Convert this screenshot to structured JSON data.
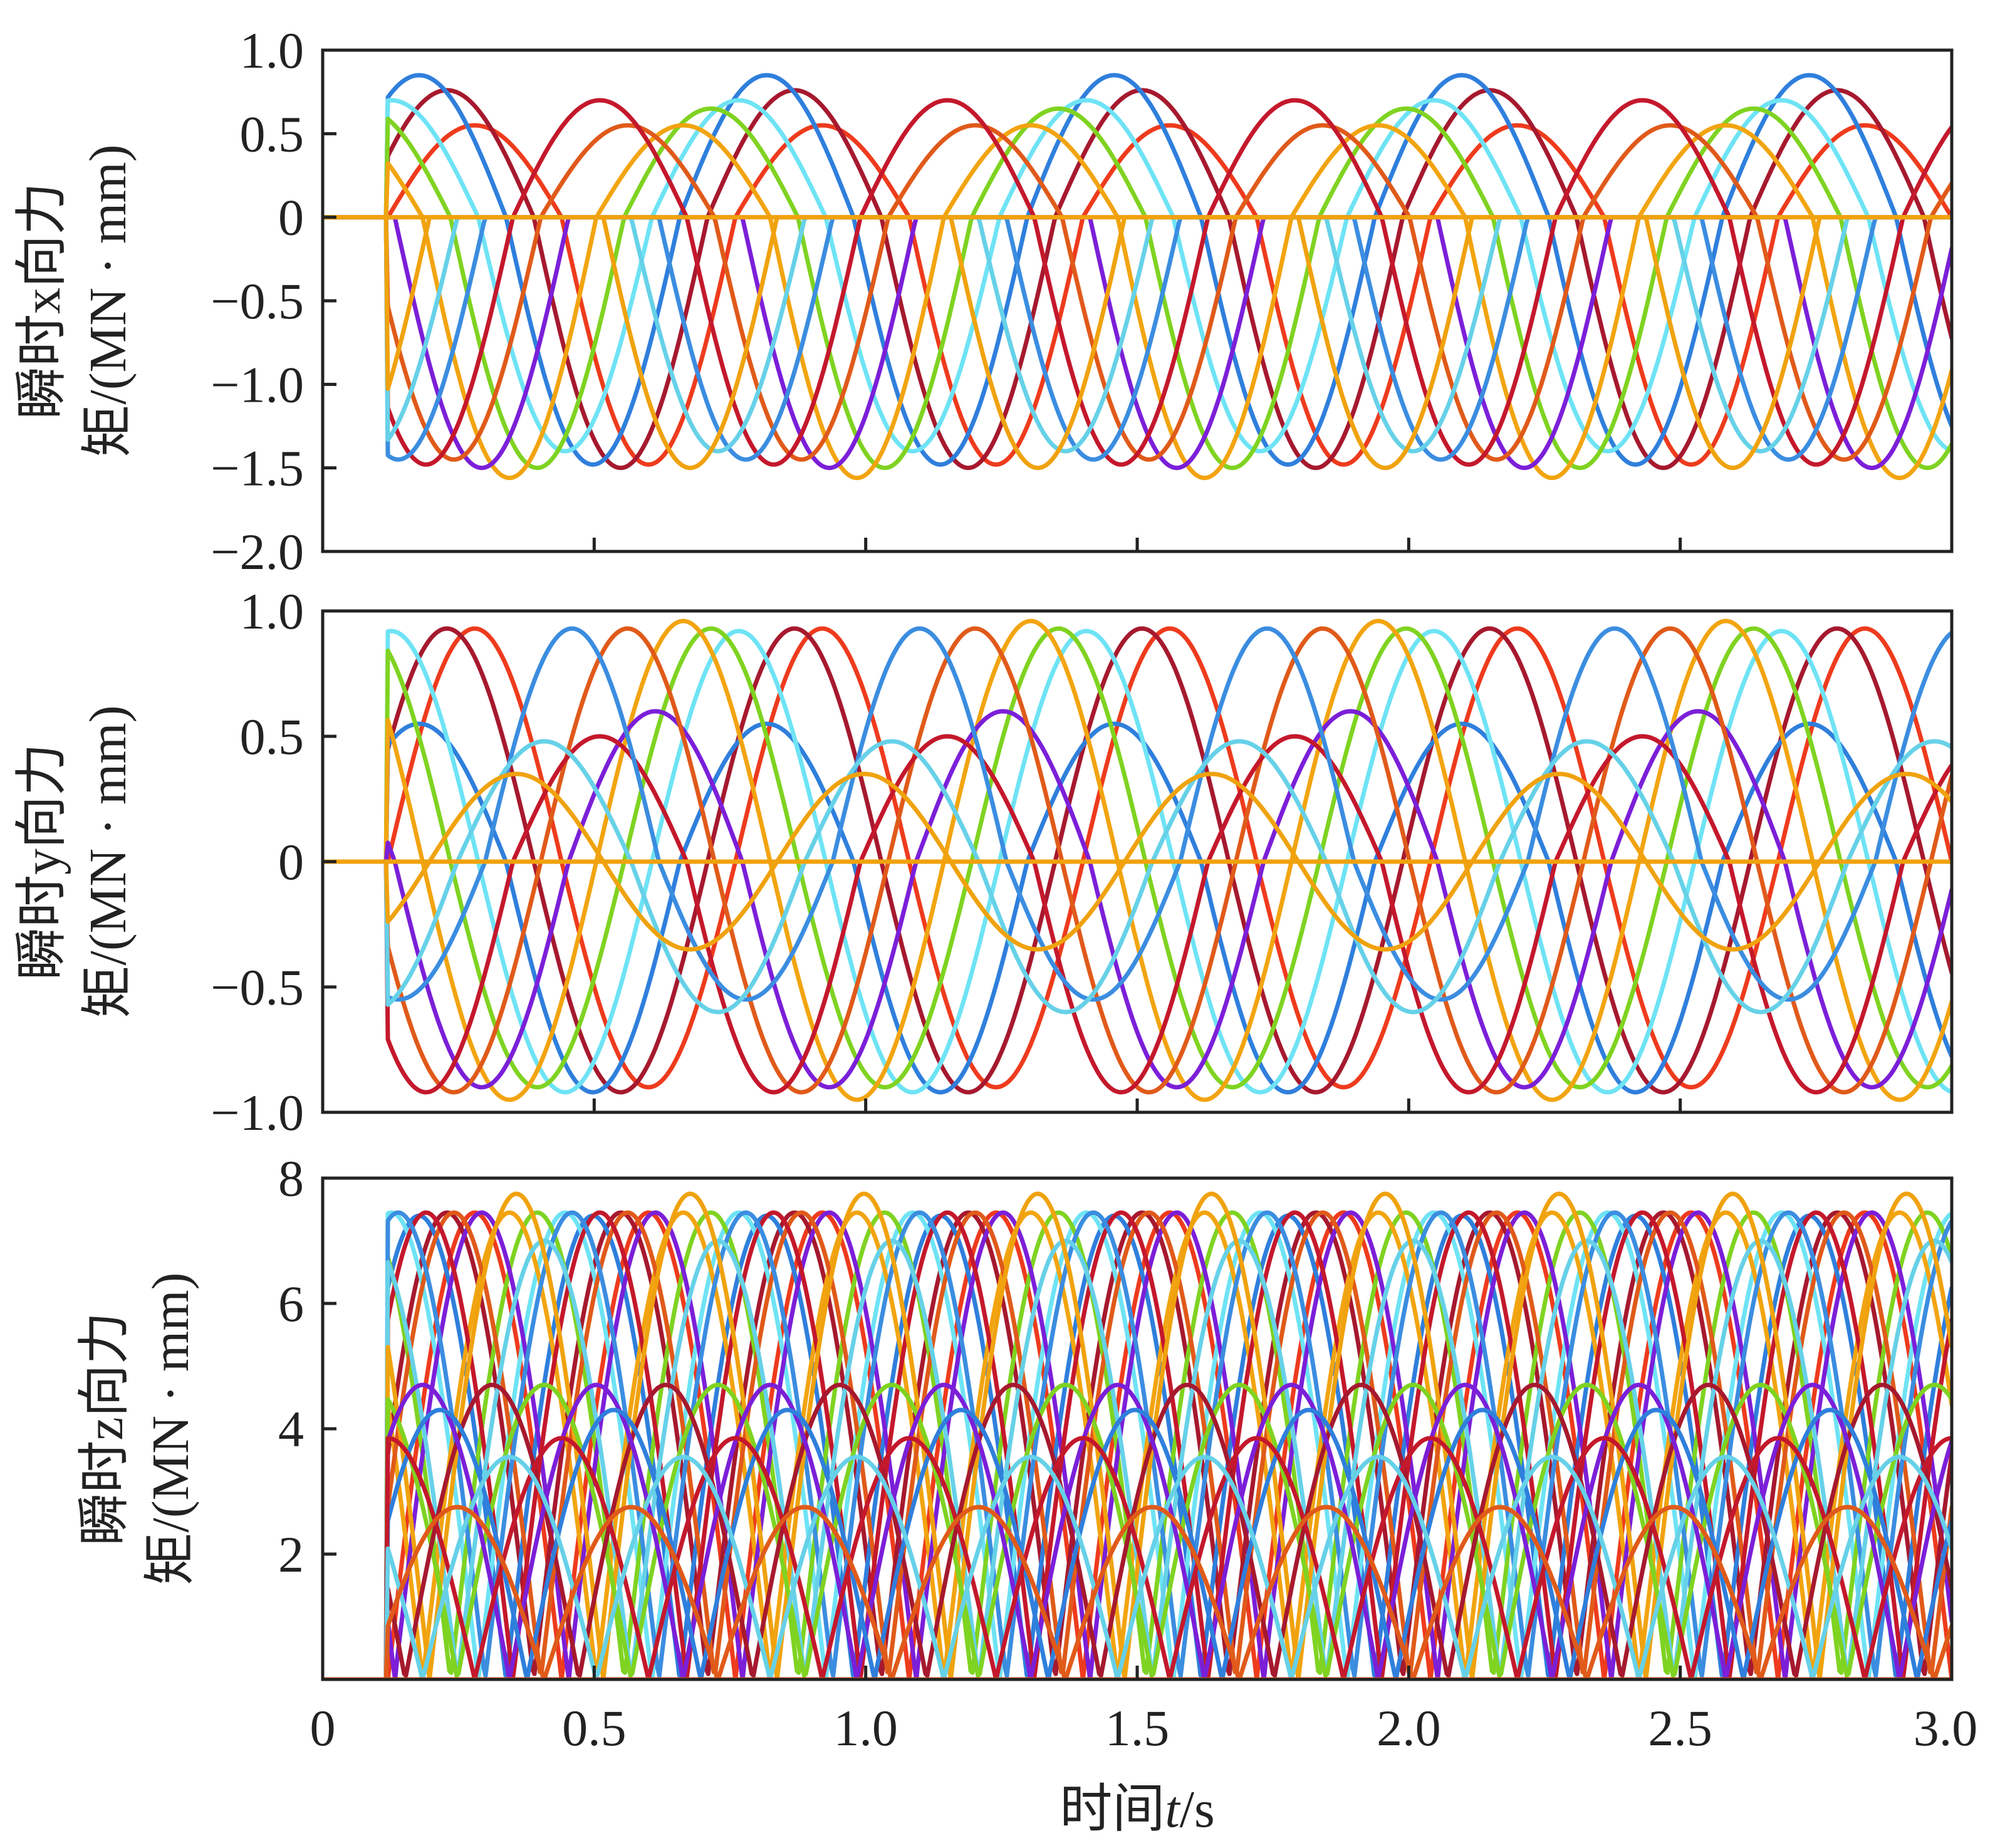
{
  "chart_data": [
    {
      "type": "line",
      "panel": "x",
      "ylabel_lines": [
        "瞬时x向力",
        "矩/(MN · mm)"
      ],
      "ylabel_italic_char": "x",
      "xlim": [
        0,
        3.0
      ],
      "ylim": [
        -2.0,
        1.0
      ],
      "yticks": [
        1.0,
        0.5,
        0,
        -0.5,
        -1.0,
        -1.5,
        -2.0
      ],
      "ytick_labels": [
        "1.0",
        "0.5",
        "0",
        "−0.5",
        "−1.0",
        "−1.5",
        "−2.0"
      ],
      "xticks": [
        0,
        0.5,
        1.0,
        1.5,
        2.0,
        2.5,
        3.0
      ],
      "period": 1.28,
      "start": 0.12,
      "series": [
        {
          "color": "#ee3b1d",
          "pos_amp": 0.55,
          "neg_amp": -1.48,
          "phase": 0.0,
          "freq": 2
        },
        {
          "color": "#a6192e",
          "pos_amp": 0.76,
          "neg_amp": -1.5,
          "phase": 0.08,
          "freq": 2
        },
        {
          "color": "#2f7fdc",
          "pos_amp": 0.85,
          "neg_amp": -1.48,
          "phase": 0.16,
          "freq": 2
        },
        {
          "color": "#6ee3f5",
          "pos_amp": 0.7,
          "neg_amp": -1.4,
          "phase": 0.24,
          "freq": 2
        },
        {
          "color": "#7fd321",
          "pos_amp": 0.65,
          "neg_amp": -1.5,
          "phase": 0.32,
          "freq": 2
        },
        {
          "color": "#f2a410",
          "pos_amp": 0.55,
          "neg_amp": -1.56,
          "phase": 0.4,
          "freq": 2
        },
        {
          "color": "#7b1fd8",
          "pos_amp": 0.0,
          "neg_amp": -1.5,
          "phase": 0.48,
          "freq": 2
        },
        {
          "color": "#e05a1a",
          "pos_amp": 0.55,
          "neg_amp": -1.45,
          "phase": 0.56,
          "freq": 2
        },
        {
          "color": "#c4182c",
          "pos_amp": 0.7,
          "neg_amp": -1.48,
          "phase": 0.64,
          "freq": 2
        },
        {
          "color": "#3b8de0",
          "pos_amp": 0.0,
          "neg_amp": -1.45,
          "phase": 0.72,
          "freq": 2
        },
        {
          "color": "#66d1e8",
          "pos_amp": 0.0,
          "neg_amp": -1.4,
          "phase": 0.8,
          "freq": 2
        },
        {
          "color": "#f0a20e",
          "pos_amp": 0.0,
          "neg_amp": -1.5,
          "phase": 0.88,
          "freq": 2
        }
      ]
    },
    {
      "type": "line",
      "panel": "y",
      "ylabel_lines": [
        "瞬时y向力",
        "矩/(MN · mm)"
      ],
      "ylabel_italic_char": "y",
      "xlim": [
        0,
        3.0
      ],
      "ylim": [
        -1.0,
        1.0
      ],
      "yticks": [
        1.0,
        0.5,
        0,
        -0.5,
        -1.0
      ],
      "ytick_labels": [
        "1.0",
        "0.5",
        "0",
        "−0.5",
        "−1.0"
      ],
      "xticks": [
        0,
        0.5,
        1.0,
        1.5,
        2.0,
        2.5,
        3.0
      ],
      "period": 1.28,
      "start": 0.12,
      "series": [
        {
          "color": "#ee3b1d",
          "pos_amp": 0.93,
          "neg_amp": -0.9,
          "phase": 0.0,
          "freq": 2
        },
        {
          "color": "#a6192e",
          "pos_amp": 0.93,
          "neg_amp": -0.92,
          "phase": 0.08,
          "freq": 2
        },
        {
          "color": "#2f7fdc",
          "pos_amp": 0.55,
          "neg_amp": -0.92,
          "phase": 0.16,
          "freq": 2
        },
        {
          "color": "#6ee3f5",
          "pos_amp": 0.92,
          "neg_amp": -0.92,
          "phase": 0.24,
          "freq": 2
        },
        {
          "color": "#7fd321",
          "pos_amp": 0.93,
          "neg_amp": -0.9,
          "phase": 0.32,
          "freq": 2
        },
        {
          "color": "#f2a410",
          "pos_amp": 0.96,
          "neg_amp": -0.95,
          "phase": 0.4,
          "freq": 2
        },
        {
          "color": "#7b1fd8",
          "pos_amp": 0.6,
          "neg_amp": -0.9,
          "phase": 0.48,
          "freq": 2
        },
        {
          "color": "#e05a1a",
          "pos_amp": 0.93,
          "neg_amp": -0.92,
          "phase": 0.56,
          "freq": 2
        },
        {
          "color": "#c4182c",
          "pos_amp": 0.5,
          "neg_amp": -0.92,
          "phase": 0.64,
          "freq": 2
        },
        {
          "color": "#3b8de0",
          "pos_amp": 0.93,
          "neg_amp": -0.55,
          "phase": 0.72,
          "freq": 2
        },
        {
          "color": "#66d1e8",
          "pos_amp": 0.48,
          "neg_amp": -0.6,
          "phase": 0.8,
          "freq": 2
        },
        {
          "color": "#f0a20e",
          "pos_amp": 0.35,
          "neg_amp": -0.35,
          "phase": 0.88,
          "freq": 2
        }
      ]
    },
    {
      "type": "line",
      "panel": "z",
      "ylabel_lines": [
        "瞬时z向力",
        "矩/(MN · mm)"
      ],
      "ylabel_italic_char": "z",
      "xlim": [
        0,
        3.0
      ],
      "ylim": [
        0,
        8
      ],
      "yticks": [
        8,
        6,
        4,
        2
      ],
      "ytick_labels": [
        "8",
        "6",
        "4",
        "2"
      ],
      "xticks": [
        0,
        0.5,
        1.0,
        1.5,
        2.0,
        2.5,
        3.0
      ],
      "xtick_labels": [
        "0",
        "0.5",
        "1.0",
        "1.5",
        "2.0",
        "2.5",
        "3.0"
      ],
      "xlabel_prefix": "时间",
      "xlabel_italic": "t",
      "xlabel_suffix": "/s",
      "period": 1.28,
      "start": 0.12,
      "series": [
        {
          "color": "#ee3b1d",
          "peak": 7.45,
          "phase": 0.0,
          "freq": 2
        },
        {
          "color": "#a6192e",
          "peak": 7.45,
          "phase": 0.08,
          "freq": 2
        },
        {
          "color": "#2f7fdc",
          "peak": 7.4,
          "phase": 0.16,
          "freq": 2
        },
        {
          "color": "#6ee3f5",
          "peak": 7.45,
          "phase": 0.24,
          "freq": 2
        },
        {
          "color": "#7fd321",
          "peak": 7.45,
          "phase": 0.32,
          "freq": 2
        },
        {
          "color": "#f2a410",
          "peak": 7.45,
          "phase": 0.4,
          "freq": 2
        },
        {
          "color": "#7b1fd8",
          "peak": 7.45,
          "phase": 0.48,
          "freq": 2
        },
        {
          "color": "#e05a1a",
          "peak": 7.45,
          "phase": 0.56,
          "freq": 2
        },
        {
          "color": "#c4182c",
          "peak": 7.45,
          "phase": 0.64,
          "freq": 2
        },
        {
          "color": "#3b8de0",
          "peak": 7.45,
          "phase": 0.72,
          "freq": 2
        },
        {
          "color": "#66d1e8",
          "peak": 7.0,
          "phase": 0.8,
          "freq": 2
        },
        {
          "color": "#f0a20e",
          "peak": 7.75,
          "phase": 0.88,
          "freq": 2
        },
        {
          "color": "#7fd321",
          "peak": 4.7,
          "phase": 0.3,
          "freq": 2
        },
        {
          "color": "#a6192e",
          "peak": 4.7,
          "phase": 0.45,
          "freq": 2
        },
        {
          "color": "#7b1fd8",
          "peak": 4.7,
          "phase": 0.15,
          "freq": 2
        },
        {
          "color": "#2f7fdc",
          "peak": 4.3,
          "phase": 0.6,
          "freq": 2
        },
        {
          "color": "#c4182c",
          "peak": 3.85,
          "phase": 0.75,
          "freq": 2
        },
        {
          "color": "#66d1e8",
          "peak": 3.55,
          "phase": 0.9,
          "freq": 2
        },
        {
          "color": "#f2a410",
          "peak": 2.75,
          "phase": 0.05,
          "freq": 2
        },
        {
          "color": "#e05a1a",
          "peak": 2.75,
          "phase": 0.55,
          "freq": 2
        }
      ]
    }
  ]
}
